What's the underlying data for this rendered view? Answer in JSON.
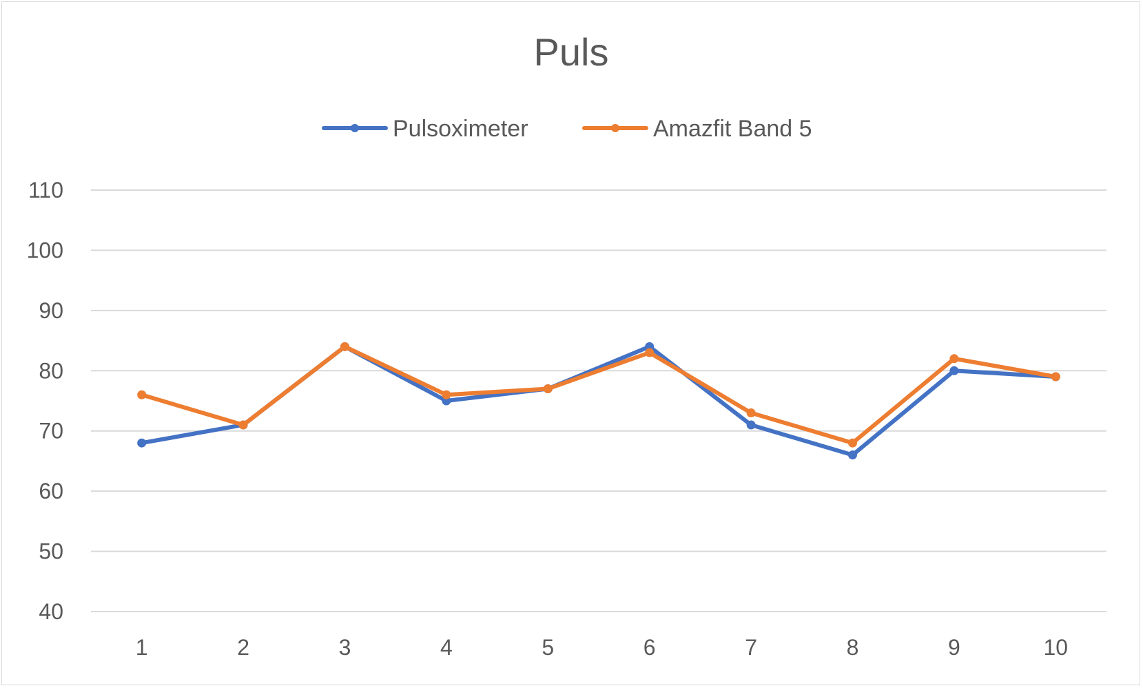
{
  "chart_data": {
    "type": "line",
    "title": "Puls",
    "xlabel": "",
    "ylabel": "",
    "categories": [
      "1",
      "2",
      "3",
      "4",
      "5",
      "6",
      "7",
      "8",
      "9",
      "10"
    ],
    "ylim": [
      40,
      110
    ],
    "yticks": [
      "40",
      "50",
      "60",
      "70",
      "80",
      "90",
      "100",
      "110"
    ],
    "grid": true,
    "legend_position": "top",
    "series": [
      {
        "name": "Pulsoximeter",
        "color": "#4472C4",
        "values": [
          68,
          71,
          84,
          75,
          77,
          84,
          71,
          66,
          80,
          79
        ]
      },
      {
        "name": "Amazfit Band 5",
        "color": "#ED7D31",
        "values": [
          76,
          71,
          84,
          76,
          77,
          83,
          73,
          68,
          82,
          79
        ]
      }
    ]
  }
}
